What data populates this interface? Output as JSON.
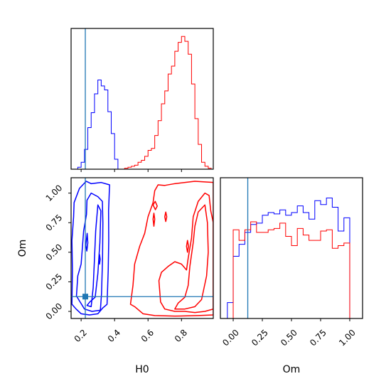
{
  "chart_data": {
    "type": "corner",
    "truth": {
      "H0": 0.225,
      "Om": 0.125
    },
    "truth_color": "#1f77b4",
    "series": [
      {
        "color": "#0000ff"
      },
      {
        "color": "#ff0000"
      }
    ],
    "panels": [
      {
        "id": "H0-marginal",
        "type": "histogram",
        "xlim": [
          0.14,
          0.99
        ],
        "bin_width": 0.02,
        "series_values": [
          [
            [
              0.14,
              0
            ],
            [
              0.16,
              0
            ],
            [
              0.18,
              0.02
            ],
            [
              0.2,
              0.07
            ],
            [
              0.22,
              0.2
            ],
            [
              0.24,
              0.42
            ],
            [
              0.26,
              0.57
            ],
            [
              0.28,
              0.76
            ],
            [
              0.3,
              0.9
            ],
            [
              0.32,
              0.84
            ],
            [
              0.34,
              0.8
            ],
            [
              0.36,
              0.58
            ],
            [
              0.38,
              0.36
            ],
            [
              0.4,
              0.1
            ],
            [
              0.42,
              0
            ],
            [
              0.44,
              0
            ]
          ],
          [
            [
              0.42,
              0
            ],
            [
              0.44,
              0
            ],
            [
              0.46,
              0.01
            ],
            [
              0.48,
              0.02
            ],
            [
              0.5,
              0.03
            ],
            [
              0.52,
              0.04
            ],
            [
              0.54,
              0.07
            ],
            [
              0.56,
              0.09
            ],
            [
              0.58,
              0.13
            ],
            [
              0.6,
              0.19
            ],
            [
              0.62,
              0.21
            ],
            [
              0.64,
              0.34
            ],
            [
              0.66,
              0.49
            ],
            [
              0.68,
              0.66
            ],
            [
              0.7,
              0.79
            ],
            [
              0.72,
              0.96
            ],
            [
              0.74,
              1.04
            ],
            [
              0.76,
              1.19
            ],
            [
              0.78,
              1.28
            ],
            [
              0.8,
              1.34
            ],
            [
              0.82,
              1.29
            ],
            [
              0.84,
              1.16
            ],
            [
              0.86,
              0.86
            ],
            [
              0.88,
              0.51
            ],
            [
              0.9,
              0.25
            ],
            [
              0.92,
              0.07
            ],
            [
              0.94,
              0.03
            ],
            [
              0.96,
              0.01
            ]
          ]
        ],
        "xtick_labels_hidden": true,
        "ytick_labels_hidden": true
      },
      {
        "id": "Om-vs-H0",
        "type": "contour",
        "xlabel": "H0",
        "ylabel": "Om",
        "xlim": [
          0.14,
          0.99
        ],
        "ylim": [
          -0.06,
          1.13
        ],
        "xticks": [
          0.2,
          0.4,
          0.6,
          0.8
        ],
        "xtick_labels": [
          "0.2",
          "0.4",
          "0.6",
          "0.8"
        ],
        "yticks": [
          0.0,
          0.25,
          0.5,
          0.75,
          1.0
        ],
        "ytick_labels": [
          "0.00",
          "0.25",
          "0.50",
          "0.75",
          "1.00"
        ],
        "series_contours": [
          [
            [
              [
                0.145,
                0.06
              ],
              [
                0.17,
                0.02
              ],
              [
                0.2,
                -0.02
              ],
              [
                0.25,
                -0.03
              ],
              [
                0.3,
                -0.02
              ],
              [
                0.33,
                0.03
              ],
              [
                0.355,
                0.06
              ],
              [
                0.362,
                0.35
              ],
              [
                0.365,
                0.6
              ],
              [
                0.364,
                0.85
              ],
              [
                0.37,
                1.07
              ],
              [
                0.32,
                1.09
              ],
              [
                0.26,
                1.08
              ],
              [
                0.23,
                1.1
              ],
              [
                0.19,
                1.04
              ],
              [
                0.158,
                0.92
              ],
              [
                0.155,
                0.8
              ],
              [
                0.145,
                0.6
              ],
              [
                0.148,
                0.35
              ],
              [
                0.145,
                0.06
              ]
            ],
            [
              [
                0.172,
                0.13
              ],
              [
                0.22,
                0.02
              ],
              [
                0.265,
                0.0
              ],
              [
                0.315,
                0.01
              ],
              [
                0.322,
                0.15
              ],
              [
                0.328,
                0.45
              ],
              [
                0.33,
                0.75
              ],
              [
                0.327,
                0.93
              ],
              [
                0.3,
                0.97
              ],
              [
                0.26,
                1.0
              ],
              [
                0.235,
                0.94
              ],
              [
                0.232,
                0.82
              ],
              [
                0.215,
                0.68
              ],
              [
                0.2,
                0.4
              ],
              [
                0.18,
                0.3
              ],
              [
                0.172,
                0.13
              ]
            ],
            [
              [
                0.235,
                0.05
              ],
              [
                0.26,
                0.04
              ],
              [
                0.272,
                0.2
              ],
              [
                0.28,
                0.45
              ],
              [
                0.287,
                0.68
              ],
              [
                0.3,
                0.9
              ],
              [
                0.318,
                0.85
              ],
              [
                0.312,
                0.58
              ],
              [
                0.3,
                0.32
              ],
              [
                0.284,
                0.12
              ],
              [
                0.252,
                0.08
              ],
              [
                0.235,
                0.05
              ]
            ],
            [
              [
                0.228,
                0.56
              ],
              [
                0.234,
                0.51
              ],
              [
                0.24,
                0.58
              ],
              [
                0.236,
                0.66
              ],
              [
                0.228,
                0.56
              ]
            ],
            [
              [
                0.306,
                0.43
              ],
              [
                0.31,
                0.4
              ],
              [
                0.314,
                0.44
              ],
              [
                0.31,
                0.48
              ],
              [
                0.306,
                0.43
              ]
            ]
          ],
          [
            [
              [
                0.495,
                0.06
              ],
              [
                0.52,
                0.04
              ],
              [
                0.57,
                -0.02
              ],
              [
                0.64,
                -0.035
              ],
              [
                0.76,
                -0.04
              ],
              [
                0.9,
                -0.035
              ],
              [
                0.99,
                -0.03
              ],
              [
                0.99,
                1.09
              ],
              [
                0.88,
                1.1
              ],
              [
                0.76,
                1.08
              ],
              [
                0.7,
                1.065
              ],
              [
                0.66,
                1.07
              ],
              [
                0.64,
                1.02
              ],
              [
                0.63,
                0.92
              ],
              [
                0.6,
                0.8
              ],
              [
                0.58,
                0.66
              ],
              [
                0.55,
                0.55
              ],
              [
                0.52,
                0.4
              ],
              [
                0.51,
                0.22
              ],
              [
                0.495,
                0.06
              ]
            ],
            [
              [
                0.665,
                0.26
              ],
              [
                0.675,
                0.08
              ],
              [
                0.7,
                0.02
              ],
              [
                0.76,
                0.0
              ],
              [
                0.82,
                0.0
              ],
              [
                0.88,
                -0.01
              ],
              [
                0.94,
                0.0
              ],
              [
                0.99,
                0.02
              ],
              [
                0.99,
                0.75
              ],
              [
                0.975,
                0.85
              ],
              [
                0.965,
                0.98
              ],
              [
                0.94,
                1.0
              ],
              [
                0.9,
                0.93
              ],
              [
                0.87,
                0.8
              ],
              [
                0.86,
                0.62
              ],
              [
                0.84,
                0.45
              ],
              [
                0.83,
                0.35
              ],
              [
                0.8,
                0.4
              ],
              [
                0.76,
                0.42
              ],
              [
                0.72,
                0.38
              ],
              [
                0.68,
                0.33
              ],
              [
                0.665,
                0.26
              ]
            ],
            [
              [
                0.76,
                0.02
              ],
              [
                0.82,
                0.02
              ],
              [
                0.88,
                0.04
              ],
              [
                0.92,
                0.1
              ],
              [
                0.95,
                0.3
              ],
              [
                0.96,
                0.5
              ],
              [
                0.955,
                0.75
              ],
              [
                0.94,
                0.9
              ],
              [
                0.9,
                0.84
              ],
              [
                0.88,
                0.72
              ],
              [
                0.87,
                0.58
              ],
              [
                0.86,
                0.48
              ],
              [
                0.85,
                0.38
              ],
              [
                0.84,
                0.22
              ],
              [
                0.82,
                0.12
              ],
              [
                0.78,
                0.07
              ],
              [
                0.76,
                0.02
              ]
            ],
            [
              [
                0.63,
                0.9
              ],
              [
                0.643,
                0.93
              ],
              [
                0.655,
                0.89
              ],
              [
                0.644,
                0.86
              ],
              [
                0.63,
                0.9
              ]
            ],
            [
              [
                0.63,
                0.78
              ],
              [
                0.635,
                0.72
              ],
              [
                0.64,
                0.78
              ],
              [
                0.635,
                0.83
              ],
              [
                0.63,
                0.78
              ]
            ],
            [
              [
                0.7,
                0.8
              ],
              [
                0.706,
                0.76
              ],
              [
                0.712,
                0.8
              ],
              [
                0.706,
                0.84
              ],
              [
                0.7,
                0.8
              ]
            ],
            [
              [
                0.83,
                0.55
              ],
              [
                0.836,
                0.5
              ],
              [
                0.842,
                0.55
              ],
              [
                0.836,
                0.6
              ],
              [
                0.83,
                0.55
              ]
            ]
          ]
        ]
      },
      {
        "id": "Om-marginal",
        "type": "histogram",
        "xlabel": "Om",
        "xlim": [
          -0.11,
          1.11
        ],
        "bin_width": 0.05,
        "xticks": [
          0.0,
          0.25,
          0.5,
          0.75,
          1.0
        ],
        "xtick_labels": [
          "0.00",
          "0.25",
          "0.50",
          "0.75",
          "1.00"
        ],
        "ytick_labels_hidden": true,
        "series_values": [
          [
            [
              -0.11,
              0
            ],
            [
              -0.1,
              0
            ],
            [
              -0.05,
              0.12
            ],
            [
              0.0,
              0.47
            ],
            [
              0.05,
              0.56
            ],
            [
              0.1,
              0.65
            ],
            [
              0.15,
              0.71
            ],
            [
              0.2,
              0.72
            ],
            [
              0.25,
              0.78
            ],
            [
              0.3,
              0.8
            ],
            [
              0.35,
              0.79
            ],
            [
              0.4,
              0.82
            ],
            [
              0.45,
              0.78
            ],
            [
              0.5,
              0.8
            ],
            [
              0.55,
              0.85
            ],
            [
              0.6,
              0.8
            ],
            [
              0.65,
              0.75
            ],
            [
              0.7,
              0.89
            ],
            [
              0.75,
              0.86
            ],
            [
              0.8,
              0.91
            ],
            [
              0.85,
              0.84
            ],
            [
              0.9,
              0.66
            ],
            [
              0.95,
              0.76
            ],
            [
              1.0,
              0
            ],
            [
              1.05,
              0
            ]
          ],
          [
            [
              -0.11,
              0
            ],
            [
              -0.1,
              0
            ],
            [
              -0.05,
              0
            ],
            [
              0.0,
              0.67
            ],
            [
              0.05,
              0.59
            ],
            [
              0.1,
              0.67
            ],
            [
              0.15,
              0.73
            ],
            [
              0.2,
              0.65
            ],
            [
              0.25,
              0.65
            ],
            [
              0.3,
              0.67
            ],
            [
              0.35,
              0.68
            ],
            [
              0.4,
              0.72
            ],
            [
              0.45,
              0.62
            ],
            [
              0.5,
              0.55
            ],
            [
              0.55,
              0.68
            ],
            [
              0.6,
              0.63
            ],
            [
              0.65,
              0.59
            ],
            [
              0.7,
              0.59
            ],
            [
              0.75,
              0.66
            ],
            [
              0.8,
              0.67
            ],
            [
              0.85,
              0.53
            ],
            [
              0.9,
              0.55
            ],
            [
              0.95,
              0.57
            ],
            [
              1.0,
              0
            ],
            [
              1.05,
              0
            ]
          ]
        ]
      }
    ]
  }
}
